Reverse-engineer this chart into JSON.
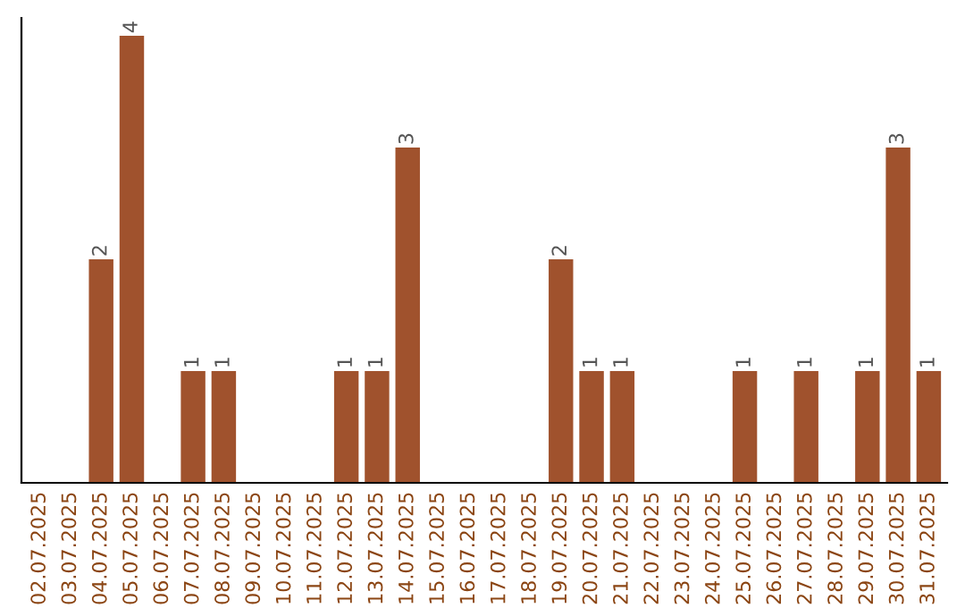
{
  "chart_data": {
    "type": "bar",
    "categories": [
      "02.07.2025",
      "03.07.2025",
      "04.07.2025",
      "05.07.2025",
      "06.07.2025",
      "07.07.2025",
      "08.07.2025",
      "09.07.2025",
      "10.07.2025",
      "11.07.2025",
      "12.07.2025",
      "13.07.2025",
      "14.07.2025",
      "15.07.2025",
      "16.07.2025",
      "17.07.2025",
      "18.07.2025",
      "19.07.2025",
      "20.07.2025",
      "21.07.2025",
      "22.07.2025",
      "23.07.2025",
      "24.07.2025",
      "25.07.2025",
      "26.07.2025",
      "27.07.2025",
      "28.07.2025",
      "29.07.2025",
      "30.07.2025",
      "31.07.2025"
    ],
    "values": [
      0,
      0,
      2,
      4,
      0,
      1,
      1,
      0,
      0,
      0,
      1,
      1,
      3,
      0,
      0,
      0,
      0,
      2,
      1,
      1,
      0,
      0,
      0,
      1,
      0,
      1,
      0,
      1,
      3,
      1
    ],
    "value_labels": [
      null,
      null,
      "2",
      "4",
      null,
      "1",
      "1",
      null,
      null,
      null,
      "1",
      "1",
      "3",
      null,
      null,
      null,
      null,
      "2",
      "1",
      "1",
      null,
      null,
      null,
      "1",
      null,
      "1",
      null,
      "1",
      "3",
      "1"
    ],
    "color": "#a0522d",
    "tick_labels": "x",
    "grid": false
  }
}
